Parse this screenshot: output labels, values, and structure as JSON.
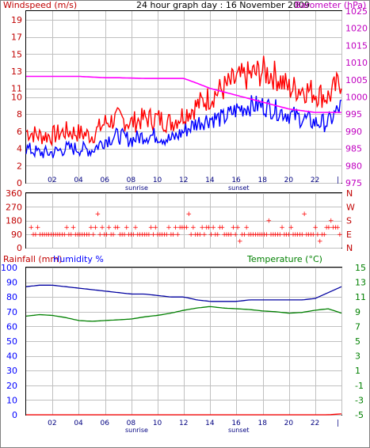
{
  "header": {
    "title": "24 hour graph day : 16 November 2009",
    "left_label": "Windspeed (m/s)",
    "right_label": "Barometer (hPa)"
  },
  "colors": {
    "frame": "#000000",
    "grid": "#c0c0c0",
    "windspeed": "#0000ff",
    "gust": "#ff0000",
    "barometer": "#ff00ff",
    "direction": "#ff0000",
    "rain": "#ff0000",
    "humidity": "#0000a0",
    "temperature": "#008000",
    "label_red": "#c00000",
    "label_blue": "#0000ff",
    "label_magenta": "#c000c0",
    "label_green": "#008000"
  },
  "x_axis": {
    "ticks": [
      "02",
      "04",
      "06",
      "08",
      "10",
      "12",
      "14",
      "16",
      "18",
      "20",
      "22",
      "|"
    ],
    "sunrise_label": "sunrise",
    "sunset_label": "sunset"
  },
  "chart_data": [
    {
      "type": "line",
      "name": "wind_baro",
      "y_left_ticks": [
        0,
        2,
        4,
        6,
        8,
        10,
        11,
        13,
        15,
        17,
        19
      ],
      "ylim_left": [
        0,
        20
      ],
      "y_right_ticks": [
        975,
        980,
        985,
        990,
        995,
        1000,
        1005,
        1010,
        1015,
        1020,
        1025
      ],
      "ylim_right": [
        975,
        1025
      ],
      "x_hours": [
        0,
        1,
        2,
        3,
        4,
        5,
        6,
        7,
        8,
        9,
        10,
        11,
        12,
        13,
        14,
        15,
        16,
        17,
        18,
        19,
        20,
        21,
        22,
        23,
        24
      ],
      "series": [
        {
          "key": "gust",
          "values": [
            6,
            5.5,
            5.5,
            6,
            5.8,
            5.5,
            7,
            7.5,
            7,
            7.5,
            7.5,
            7,
            8,
            9,
            10,
            11,
            12,
            12.5,
            13,
            12.5,
            11,
            11,
            10.5,
            10,
            12
          ]
        },
        {
          "key": "wind",
          "values": [
            4,
            3.5,
            3.5,
            4,
            4,
            3.8,
            5,
            5.5,
            5,
            5.5,
            5.5,
            5,
            6,
            7,
            7.5,
            7.5,
            8.5,
            9,
            9,
            8.5,
            8,
            7.5,
            7,
            7,
            9
          ]
        },
        {
          "key": "baro",
          "values": [
            1006,
            1006,
            1006,
            1006,
            1006,
            1005.8,
            1005.6,
            1005.6,
            1005.5,
            1005.4,
            1005.4,
            1005.4,
            1005.4,
            1004,
            1002.5,
            1001.5,
            1000.5,
            999.5,
            998.5,
            997.5,
            996.5,
            996,
            995.5,
            995.5,
            995.5
          ]
        }
      ]
    },
    {
      "type": "scatter",
      "name": "direction",
      "y_ticks": [
        360,
        270,
        180,
        90,
        0
      ],
      "ylim": [
        0,
        360
      ],
      "compass": [
        "N",
        "W",
        "S",
        "E",
        "N"
      ],
      "base_values": [
        90,
        135
      ]
    },
    {
      "type": "line",
      "name": "rain_hum_temp",
      "left_label_rain": "Rainfall (mm)",
      "left_label_hum": "Humidity %",
      "right_label": "Temperature (°C)",
      "y_left_ticks": [
        100,
        90,
        80,
        70,
        60,
        50,
        40,
        30,
        20,
        10,
        0
      ],
      "ylim_left": [
        0,
        100
      ],
      "y_right_ticks": [
        15,
        13,
        11,
        9,
        7,
        5,
        3,
        1,
        -1,
        -3,
        -5
      ],
      "ylim_right": [
        -5,
        15
      ],
      "x_hours": [
        0,
        1,
        2,
        3,
        4,
        5,
        6,
        7,
        8,
        9,
        10,
        11,
        12,
        13,
        14,
        15,
        16,
        17,
        18,
        19,
        20,
        21,
        22,
        23,
        24
      ],
      "series": [
        {
          "key": "humidity",
          "values": [
            87,
            88,
            88,
            87,
            86,
            85,
            84,
            83,
            82,
            82,
            81,
            80,
            80,
            78,
            77,
            77,
            77,
            78,
            78,
            78,
            78,
            78,
            79,
            83,
            87
          ]
        },
        {
          "key": "temperature",
          "values": [
            8.4,
            8.6,
            8.5,
            8.2,
            7.8,
            7.7,
            7.8,
            7.9,
            8,
            8.3,
            8.5,
            8.8,
            9.2,
            9.5,
            9.7,
            9.5,
            9.4,
            9.3,
            9.1,
            9,
            8.8,
            8.9,
            9.2,
            9.4,
            8.8
          ]
        },
        {
          "key": "rain",
          "values": [
            0,
            0,
            0,
            0,
            0,
            0,
            0,
            0,
            0,
            0,
            0,
            0,
            0,
            0,
            0,
            0,
            0,
            0,
            0,
            0,
            0,
            0,
            0,
            0,
            0.6
          ]
        }
      ]
    }
  ]
}
